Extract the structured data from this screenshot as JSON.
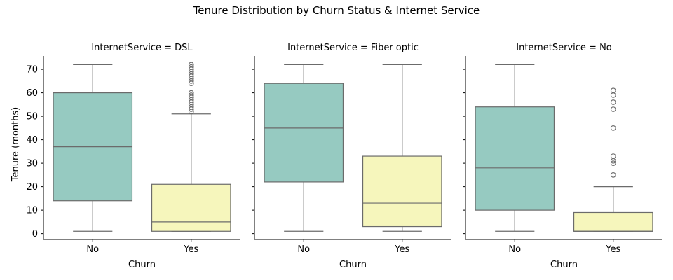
{
  "figure": {
    "suptitle": "Tenure Distribution by Churn Status & Internet Service"
  },
  "chart_data": {
    "type": "box",
    "title": "Tenure Distribution by Churn Status & Internet Service",
    "xlabel": "Churn",
    "ylabel": "Tenure (months)",
    "categories": [
      "No",
      "Yes"
    ],
    "yticks": [
      0,
      10,
      20,
      30,
      40,
      50,
      60,
      70
    ],
    "ylim": [
      -2.5,
      75.7
    ],
    "sharey": true,
    "colors": {
      "No": "#96cac1",
      "Yes": "#f6f6bc",
      "lines": "#6b6b6b"
    },
    "panels": [
      {
        "title": "InternetService = DSL",
        "boxes": [
          {
            "category": "No",
            "whislo": 1,
            "q1": 14,
            "med": 37,
            "q3": 60,
            "whishi": 72,
            "fliers": []
          },
          {
            "category": "Yes",
            "whislo": 1,
            "q1": 1,
            "med": 5,
            "q3": 21,
            "whishi": 51,
            "fliers": [
              52,
              53,
              54,
              55,
              56,
              57,
              58,
              59,
              60,
              64,
              65,
              66,
              67,
              68,
              69,
              70,
              71,
              72
            ]
          }
        ]
      },
      {
        "title": "InternetService = Fiber optic",
        "boxes": [
          {
            "category": "No",
            "whislo": 1,
            "q1": 22,
            "med": 45,
            "q3": 64,
            "whishi": 72,
            "fliers": []
          },
          {
            "category": "Yes",
            "whislo": 1,
            "q1": 3,
            "med": 13,
            "q3": 33,
            "whishi": 72,
            "fliers": []
          }
        ]
      },
      {
        "title": "InternetService = No",
        "boxes": [
          {
            "category": "No",
            "whislo": 1,
            "q1": 10,
            "med": 28,
            "q3": 54,
            "whishi": 72,
            "fliers": []
          },
          {
            "category": "Yes",
            "whislo": 1,
            "q1": 1,
            "med": 1,
            "q3": 9,
            "whishi": 20,
            "fliers": [
              25,
              30,
              31,
              33,
              45,
              53,
              56,
              59,
              61
            ]
          }
        ]
      }
    ]
  }
}
